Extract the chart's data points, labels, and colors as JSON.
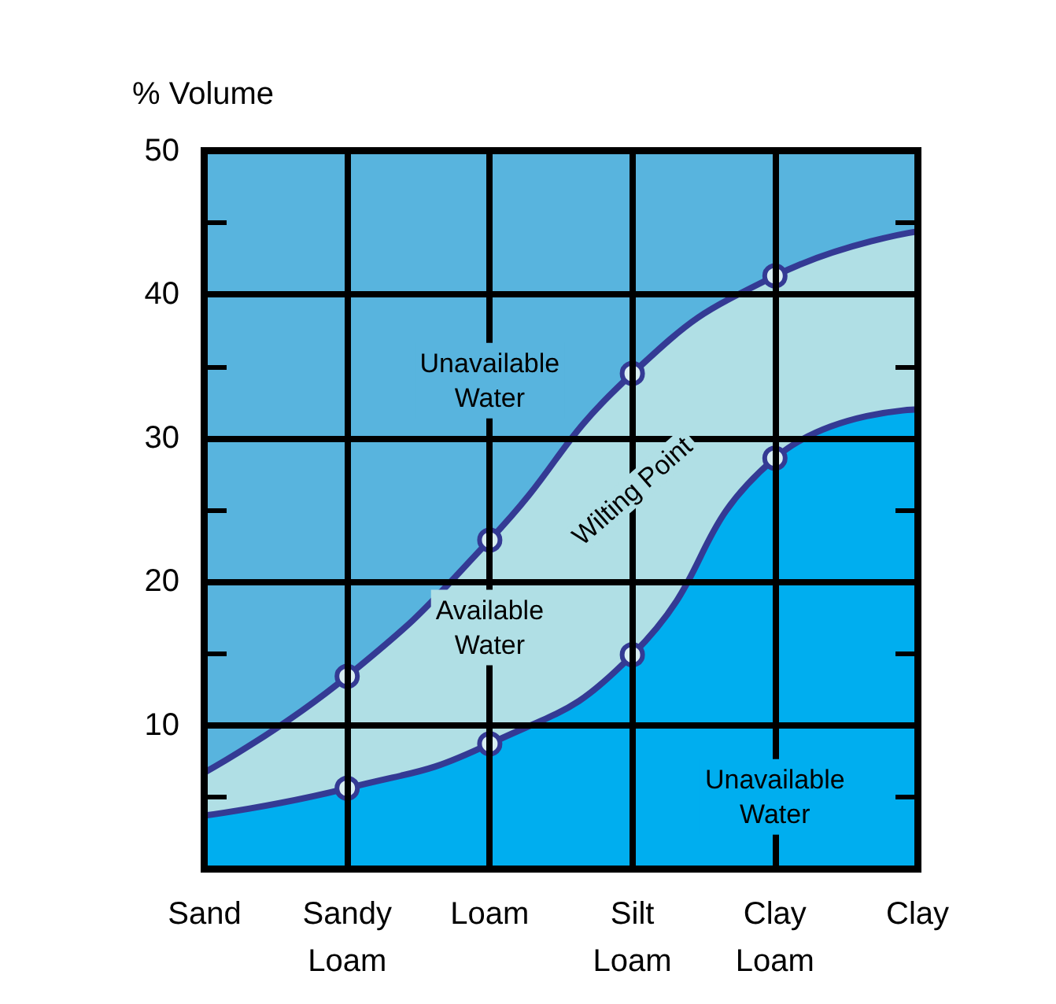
{
  "chart_data": {
    "type": "area",
    "ylabel": "% Volume",
    "categories": [
      "Sand",
      "Sandy Loam",
      "Loam",
      "Silt Loam",
      "Clay Loam",
      "Clay"
    ],
    "series": [
      {
        "color": "#b0dfe5",
        "values": [
          6.7,
          13.4,
          22.9,
          34.5,
          41.3,
          44.4
        ]
      },
      {
        "name": "Wilting Point",
        "color": "#00aeef",
        "values": [
          3.7,
          5.6,
          8.7,
          14.9,
          28.6,
          32.0
        ]
      }
    ],
    "ylim": [
      0,
      50
    ],
    "yticks": [
      {
        "value": 5,
        "label": null
      },
      10,
      {
        "value": 15,
        "label": null
      },
      20,
      {
        "value": 25,
        "label": null
      },
      30,
      {
        "value": 35,
        "label": null
      },
      40,
      {
        "value": 45,
        "label": null
      },
      50
    ],
    "bands": [
      {
        "axis": "y",
        "from": 0,
        "to": 50,
        "color": "#58b4de"
      }
    ],
    "annotations": [
      "Unavailable Water",
      "Available Water",
      "Unavailable Water"
    ],
    "grid": true,
    "marker": "circle",
    "line_style": "solid",
    "legend": false
  }
}
